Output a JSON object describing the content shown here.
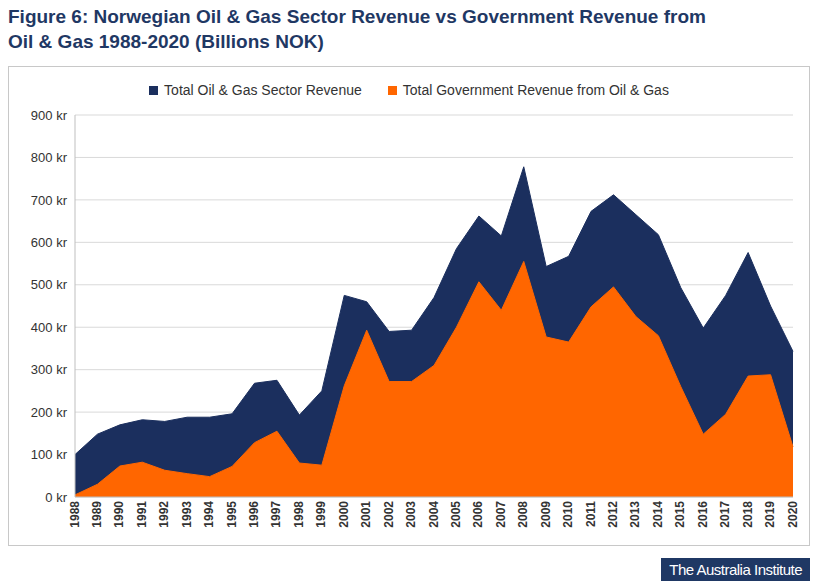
{
  "chart_data": {
    "type": "area",
    "title": "Figure 6: Norwegian Oil & Gas Sector Revenue vs Government Revenue from Oil & Gas 1988-2020 (Billions NOK)",
    "logo": "The Australia Institute",
    "categories": [
      "1988",
      "1989",
      "1990",
      "1991",
      "1992",
      "1993",
      "1994",
      "1995",
      "1996",
      "1997",
      "1998",
      "1999",
      "2000",
      "2001",
      "2002",
      "2003",
      "2004",
      "2005",
      "2006",
      "2007",
      "2008",
      "2009",
      "2010",
      "2011",
      "2012",
      "2013",
      "2014",
      "2015",
      "2016",
      "2017",
      "2018",
      "2019",
      "2020"
    ],
    "series": [
      {
        "name": "Total Oil & Gas Sector Revenue",
        "color": "#1b2f5e",
        "values": [
          100,
          148,
          170,
          182,
          178,
          188,
          188,
          196,
          268,
          275,
          193,
          250,
          475,
          460,
          390,
          393,
          470,
          585,
          662,
          615,
          778,
          543,
          567,
          673,
          712,
          665,
          618,
          493,
          398,
          475,
          576,
          450,
          343
        ]
      },
      {
        "name": "Total Government Revenue from Oil & Gas",
        "color": "#ff6600",
        "values": [
          5,
          30,
          73,
          82,
          63,
          55,
          48,
          72,
          128,
          155,
          80,
          75,
          262,
          393,
          272,
          272,
          310,
          400,
          507,
          440,
          555,
          377,
          365,
          448,
          495,
          425,
          380,
          260,
          148,
          195,
          285,
          288,
          118
        ]
      }
    ],
    "ylim": [
      0,
      900
    ],
    "yticks": [
      {
        "value": 0,
        "label": "0 kr"
      },
      {
        "value": 100,
        "label": "100 kr"
      },
      {
        "value": 200,
        "label": "200 kr"
      },
      {
        "value": 300,
        "label": "300 kr"
      },
      {
        "value": 400,
        "label": "400 kr"
      },
      {
        "value": 500,
        "label": "500 kr"
      },
      {
        "value": 600,
        "label": "600 kr"
      },
      {
        "value": 700,
        "label": "700 kr"
      },
      {
        "value": 800,
        "label": "800 kr"
      },
      {
        "value": 900,
        "label": "900 kr"
      }
    ],
    "grid": true,
    "legend": "top",
    "stacked": false
  }
}
